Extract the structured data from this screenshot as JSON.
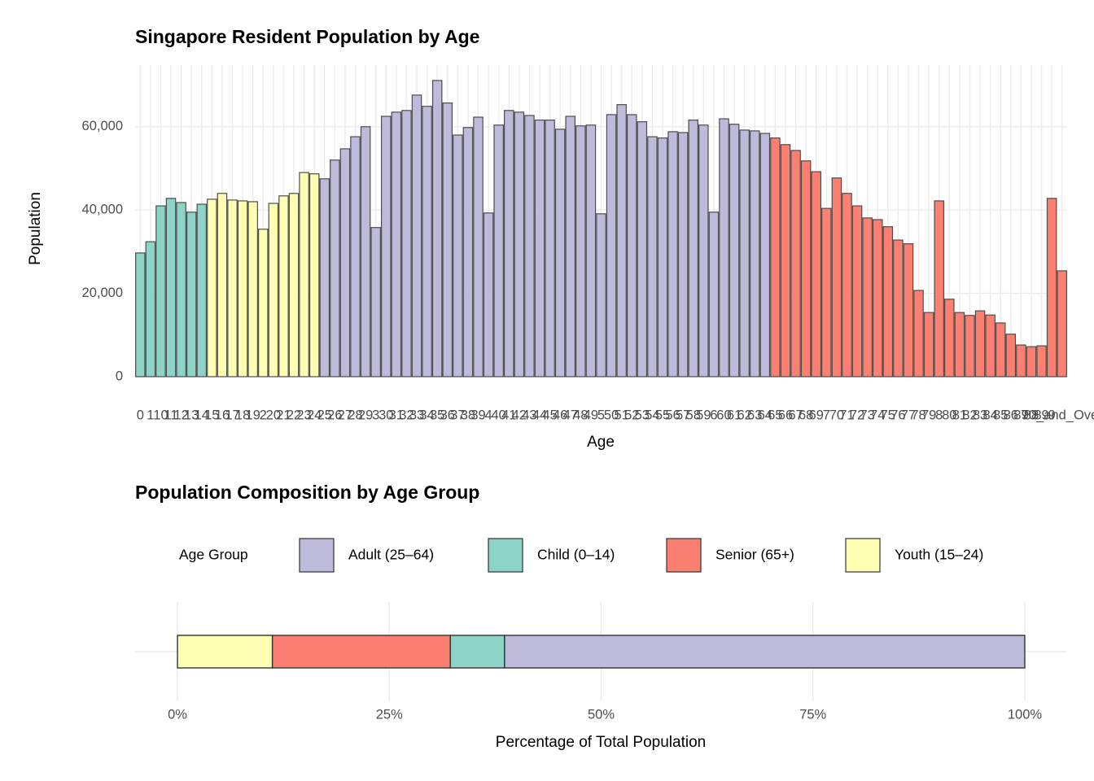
{
  "chart_data": [
    {
      "type": "bar",
      "title": "Singapore Resident Population by Age",
      "x_label": "Age",
      "y_label": "Population",
      "categories": [
        "0",
        "1",
        "10",
        "11",
        "12",
        "13",
        "14",
        "15",
        "16",
        "17",
        "18",
        "19",
        "2",
        "20",
        "21",
        "22",
        "23",
        "24",
        "25",
        "26",
        "27",
        "28",
        "29",
        "3",
        "30",
        "31",
        "32",
        "33",
        "34",
        "35",
        "36",
        "37",
        "38",
        "39",
        "4",
        "40",
        "41",
        "42",
        "43",
        "44",
        "45",
        "46",
        "47",
        "48",
        "49",
        "5",
        "50",
        "51",
        "52",
        "53",
        "54",
        "55",
        "56",
        "57",
        "58",
        "59",
        "6",
        "60",
        "61",
        "62",
        "63",
        "64",
        "65",
        "66",
        "67",
        "68",
        "69",
        "7",
        "70",
        "71",
        "72",
        "73",
        "74",
        "75",
        "76",
        "77",
        "78",
        "79",
        "8",
        "80",
        "81",
        "82",
        "83",
        "84",
        "85",
        "86",
        "87",
        "88",
        "89",
        "9",
        "90_and_Over"
      ],
      "values": [
        29700,
        32400,
        41000,
        42800,
        41800,
        39500,
        41400,
        42600,
        44000,
        42400,
        42200,
        42000,
        35400,
        41600,
        43400,
        44000,
        49000,
        48700,
        47500,
        52000,
        54700,
        57600,
        60000,
        35800,
        62500,
        63500,
        63900,
        67600,
        64900,
        71100,
        65700,
        58000,
        59800,
        62300,
        39300,
        60400,
        63900,
        63500,
        62700,
        61600,
        61600,
        59400,
        62500,
        60200,
        60400,
        39100,
        62900,
        65300,
        62900,
        61200,
        57600,
        57300,
        58800,
        58600,
        61600,
        60400,
        39500,
        61900,
        60600,
        59200,
        59000,
        58400,
        57300,
        55700,
        54300,
        51800,
        49200,
        40400,
        47700,
        44000,
        41000,
        38100,
        37700,
        36000,
        32800,
        31900,
        20700,
        15400,
        42200,
        18600,
        15400,
        14700,
        15800,
        14800,
        12900,
        10200,
        7600,
        7200,
        7400,
        42800,
        25400
      ],
      "colors": [
        "#8dd3c7",
        "#8dd3c7",
        "#8dd3c7",
        "#8dd3c7",
        "#8dd3c7",
        "#8dd3c7",
        "#8dd3c7",
        "#ffffb3",
        "#ffffb3",
        "#ffffb3",
        "#ffffb3",
        "#ffffb3",
        "#ffffb3",
        "#ffffb3",
        "#ffffb3",
        "#ffffb3",
        "#ffffb3",
        "#ffffb3",
        "#bebada",
        "#bebada",
        "#bebada",
        "#bebada",
        "#bebada",
        "#bebada",
        "#bebada",
        "#bebada",
        "#bebada",
        "#bebada",
        "#bebada",
        "#bebada",
        "#bebada",
        "#bebada",
        "#bebada",
        "#bebada",
        "#bebada",
        "#bebada",
        "#bebada",
        "#bebada",
        "#bebada",
        "#bebada",
        "#bebada",
        "#bebada",
        "#bebada",
        "#bebada",
        "#bebada",
        "#bebada",
        "#bebada",
        "#bebada",
        "#bebada",
        "#bebada",
        "#bebada",
        "#bebada",
        "#bebada",
        "#bebada",
        "#bebada",
        "#bebada",
        "#bebada",
        "#bebada",
        "#bebada",
        "#bebada",
        "#bebada",
        "#bebada",
        "#fb8072",
        "#fb8072",
        "#fb8072",
        "#fb8072",
        "#fb8072",
        "#fb8072",
        "#fb8072",
        "#fb8072",
        "#fb8072",
        "#fb8072",
        "#fb8072",
        "#fb8072",
        "#fb8072",
        "#fb8072",
        "#fb8072",
        "#fb8072",
        "#fb8072",
        "#fb8072",
        "#fb8072",
        "#fb8072",
        "#fb8072",
        "#fb8072",
        "#fb8072",
        "#fb8072",
        "#fb8072",
        "#fb8072",
        "#fb8072",
        "#fb8072",
        "#fb8072"
      ],
      "ylim": [
        0,
        74800
      ],
      "yticks": [
        0,
        {
          "value": 20000,
          "label": "20,000"
        },
        {
          "value": 40000,
          "label": "40,000"
        },
        {
          "value": 60000,
          "label": "60,000"
        }
      ],
      "grid": true
    },
    {
      "type": "stacked_bar_horizontal",
      "title": "Population Composition by Age Group",
      "x_label": "Percentage of Total Population",
      "legend_title": "Age Group",
      "legend_position": "top",
      "series": [
        {
          "name": "Adult (25–64)",
          "color": "#bebada",
          "values": [
            61.4
          ]
        },
        {
          "name": "Child (0–14)",
          "color": "#8dd3c7",
          "values": [
            6.4
          ]
        },
        {
          "name": "Senior (65+)",
          "color": "#fb8072",
          "values": [
            21.0
          ]
        },
        {
          "name": "Youth (15–24)",
          "color": "#ffffb3",
          "values": [
            11.2
          ]
        }
      ],
      "xlim": [
        -5,
        105
      ],
      "xticks": [
        {
          "value": 0,
          "label": "0%"
        },
        {
          "value": 25,
          "label": "25%"
        },
        {
          "value": 50,
          "label": "50%"
        },
        {
          "value": 75,
          "label": "75%"
        },
        {
          "value": 100,
          "label": "100%"
        }
      ],
      "grid": true
    }
  ]
}
